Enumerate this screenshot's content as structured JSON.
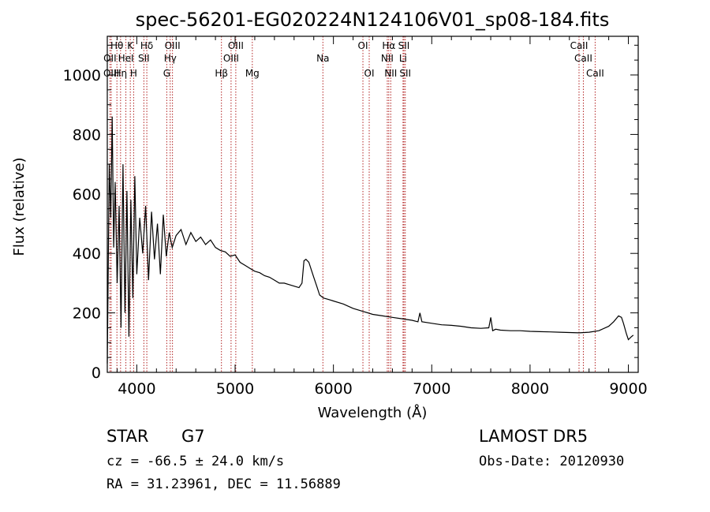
{
  "chart_data": {
    "type": "line",
    "title": "spec-56201-EG020224N124106V01_sp08-184.fits",
    "xlabel": "Wavelength (Å)",
    "ylabel": "Flux (relative)",
    "xlim": [
      3700,
      9100
    ],
    "ylim": [
      0,
      1130
    ],
    "x_ticks": [
      4000,
      5000,
      6000,
      7000,
      8000,
      9000
    ],
    "x_tick_labels": [
      "4000",
      "5000",
      "6000",
      "7000",
      "8000",
      "9000"
    ],
    "y_ticks": [
      0,
      200,
      400,
      600,
      800,
      1000
    ],
    "y_tick_labels": [
      "0",
      "200",
      "400",
      "600",
      "800",
      "1000"
    ],
    "grid": false,
    "line_color": "#000000",
    "marker_color": "#b22222",
    "spectrum": {
      "x": [
        3700,
        3720,
        3735,
        3750,
        3765,
        3780,
        3800,
        3820,
        3840,
        3860,
        3880,
        3900,
        3920,
        3940,
        3960,
        3980,
        4000,
        4030,
        4060,
        4090,
        4120,
        4150,
        4180,
        4210,
        4240,
        4270,
        4300,
        4330,
        4360,
        4400,
        4450,
        4500,
        4550,
        4600,
        4650,
        4700,
        4750,
        4800,
        4850,
        4900,
        4950,
        5000,
        5050,
        5100,
        5150,
        5200,
        5250,
        5300,
        5350,
        5400,
        5450,
        5500,
        5550,
        5600,
        5650,
        5680,
        5700,
        5720,
        5750,
        5780,
        5800,
        5830,
        5860,
        5900,
        5950,
        6000,
        6100,
        6200,
        6300,
        6400,
        6500,
        6600,
        6700,
        6800,
        6860,
        6880,
        6900,
        7000,
        7100,
        7200,
        7300,
        7400,
        7500,
        7580,
        7600,
        7620,
        7650,
        7700,
        7800,
        7900,
        8000,
        8100,
        8200,
        8300,
        8400,
        8500,
        8600,
        8700,
        8800,
        8850,
        8900,
        8930,
        8950,
        8980,
        9000,
        9030,
        9050
      ],
      "y": [
        30,
        700,
        520,
        860,
        420,
        640,
        300,
        560,
        150,
        700,
        200,
        610,
        120,
        580,
        250,
        660,
        330,
        520,
        400,
        560,
        310,
        540,
        380,
        500,
        330,
        530,
        390,
        470,
        420,
        460,
        480,
        430,
        470,
        440,
        455,
        430,
        445,
        420,
        410,
        405,
        390,
        395,
        370,
        360,
        350,
        340,
        335,
        325,
        320,
        310,
        300,
        300,
        295,
        290,
        285,
        300,
        375,
        380,
        370,
        340,
        320,
        290,
        260,
        250,
        245,
        240,
        230,
        215,
        205,
        195,
        190,
        185,
        180,
        175,
        170,
        200,
        170,
        165,
        160,
        158,
        155,
        150,
        148,
        150,
        185,
        140,
        145,
        142,
        140,
        140,
        138,
        137,
        136,
        135,
        134,
        133,
        135,
        140,
        155,
        170,
        190,
        185,
        165,
        130,
        110,
        120,
        125
      ]
    },
    "line_markers": [
      {
        "label": "Hθ",
        "x": 3798,
        "row": 1
      },
      {
        "label": "Hδ",
        "x": 4102,
        "row": 1
      },
      {
        "label": "K",
        "x": 3934,
        "row": 1
      },
      {
        "label": "OIII",
        "x": 4363,
        "row": 1
      },
      {
        "label": "OIII",
        "x": 5007,
        "row": 1
      },
      {
        "label": "OI",
        "x": 6300,
        "row": 1
      },
      {
        "label": "Hα",
        "x": 6563,
        "row": 1
      },
      {
        "label": "SII",
        "x": 6717,
        "row": 1
      },
      {
        "label": "CaII",
        "x": 8498,
        "row": 1
      },
      {
        "label": "OII",
        "x": 3727,
        "row": 2
      },
      {
        "label": "HeI",
        "x": 3889,
        "row": 2
      },
      {
        "label": "SII",
        "x": 4072,
        "row": 2
      },
      {
        "label": "Hγ",
        "x": 4340,
        "row": 2
      },
      {
        "label": "OIII",
        "x": 4959,
        "row": 2
      },
      {
        "label": "NII",
        "x": 6548,
        "row": 2
      },
      {
        "label": "Li",
        "x": 6708,
        "row": 2
      },
      {
        "label": "CaII",
        "x": 8542,
        "row": 2
      },
      {
        "label": "OIII",
        "x": 3740,
        "row": 3
      },
      {
        "label": "Hη",
        "x": 3835,
        "row": 3
      },
      {
        "label": "H",
        "x": 3968,
        "row": 3
      },
      {
        "label": "G",
        "x": 4305,
        "row": 3
      },
      {
        "label": "Hβ",
        "x": 4861,
        "row": 3
      },
      {
        "label": "Mg",
        "x": 5175,
        "row": 3
      },
      {
        "label": "Na",
        "x": 5893,
        "row": 2
      },
      {
        "label": "OI",
        "x": 6364,
        "row": 3
      },
      {
        "label": "NII",
        "x": 6583,
        "row": 3
      },
      {
        "label": "SII",
        "x": 6731,
        "row": 3
      },
      {
        "label": "CaII",
        "x": 8662,
        "row": 3
      }
    ]
  },
  "info": {
    "class_label": "STAR",
    "subclass": "G7",
    "redshift": "cz = -66.5 ± 24.0 km/s",
    "coordinates": "RA =  31.23961, DEC =  11.56889",
    "survey": "LAMOST DR5",
    "obs_date": "Obs-Date: 20120930"
  }
}
